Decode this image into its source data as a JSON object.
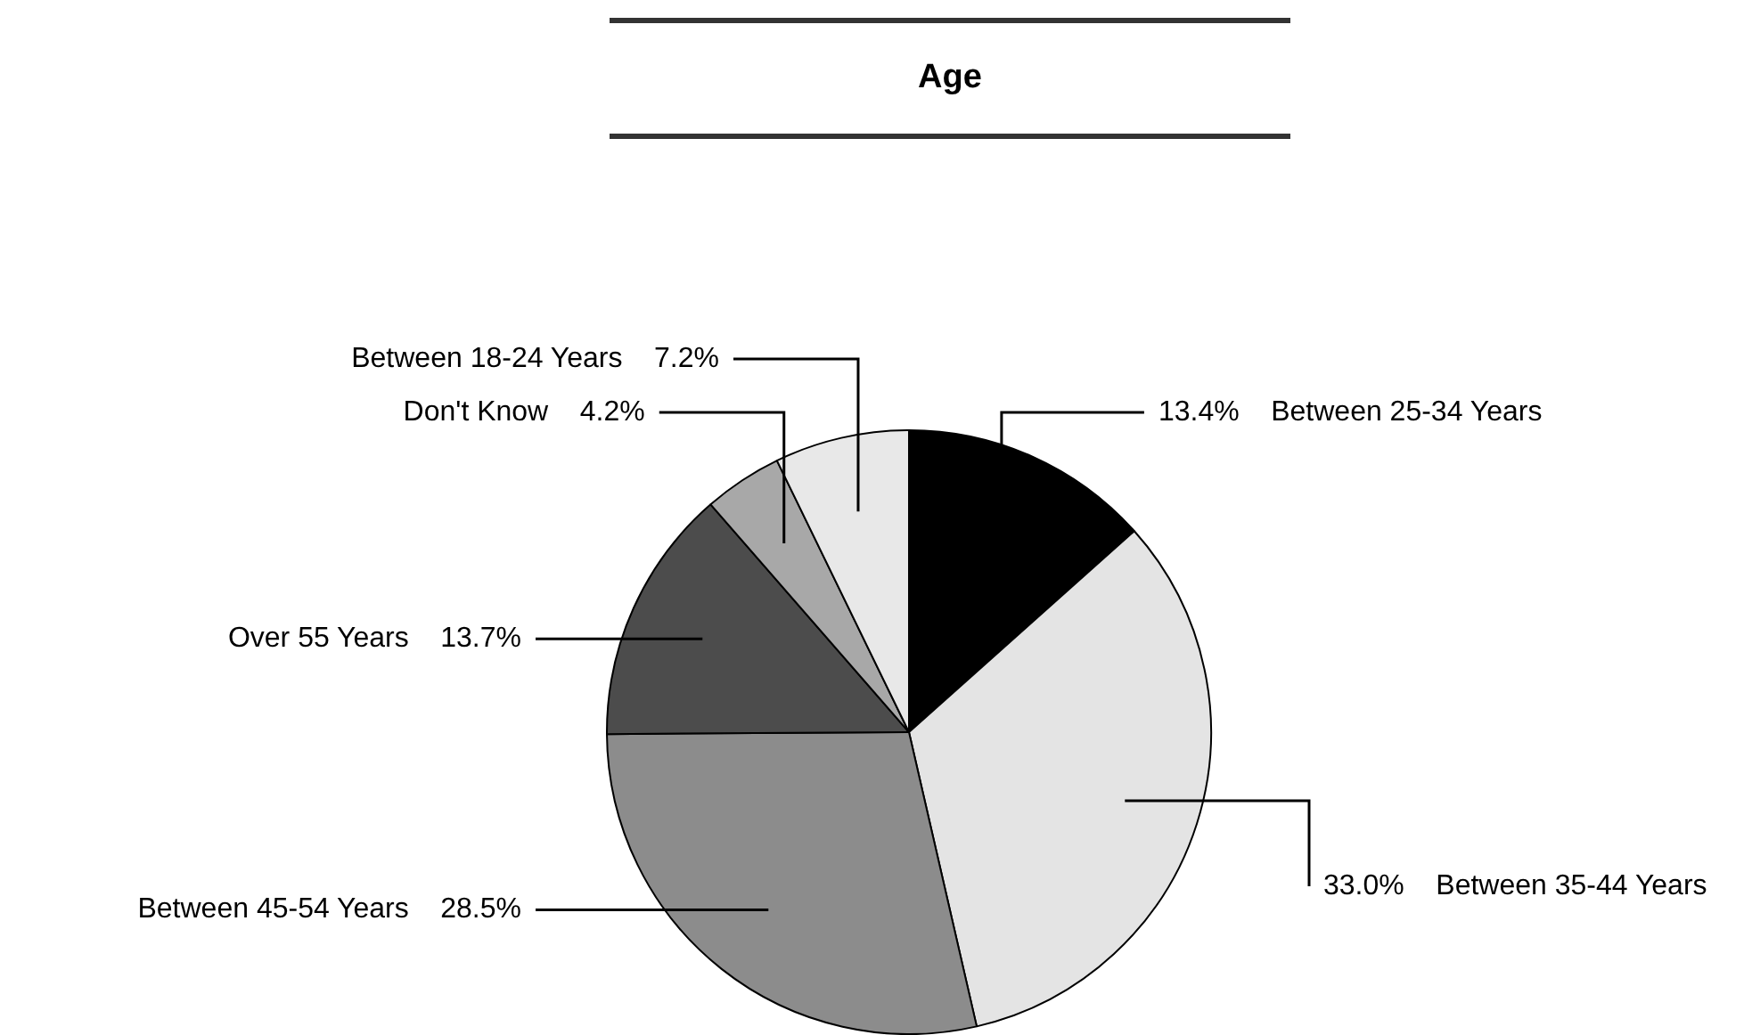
{
  "chart_data": {
    "type": "pie",
    "title": "Age",
    "categories": [
      "Between 25-34 Years",
      "Between 35-44 Years",
      "Between 45-54 Years",
      "Over 55 Years",
      "Don't Know",
      "Between 18-24 Years"
    ],
    "values": [
      13.4,
      33.0,
      28.5,
      13.7,
      4.2,
      7.2
    ],
    "value_labels": [
      "13.4%",
      "33.0%",
      "28.5%",
      "13.7%",
      "4.2%",
      "7.2%"
    ],
    "colors": [
      "#000000",
      "#e4e4e4",
      "#8c8c8c",
      "#4c4c4c",
      "#a8a8a8",
      "#e8e8e8"
    ],
    "legend": false
  }
}
